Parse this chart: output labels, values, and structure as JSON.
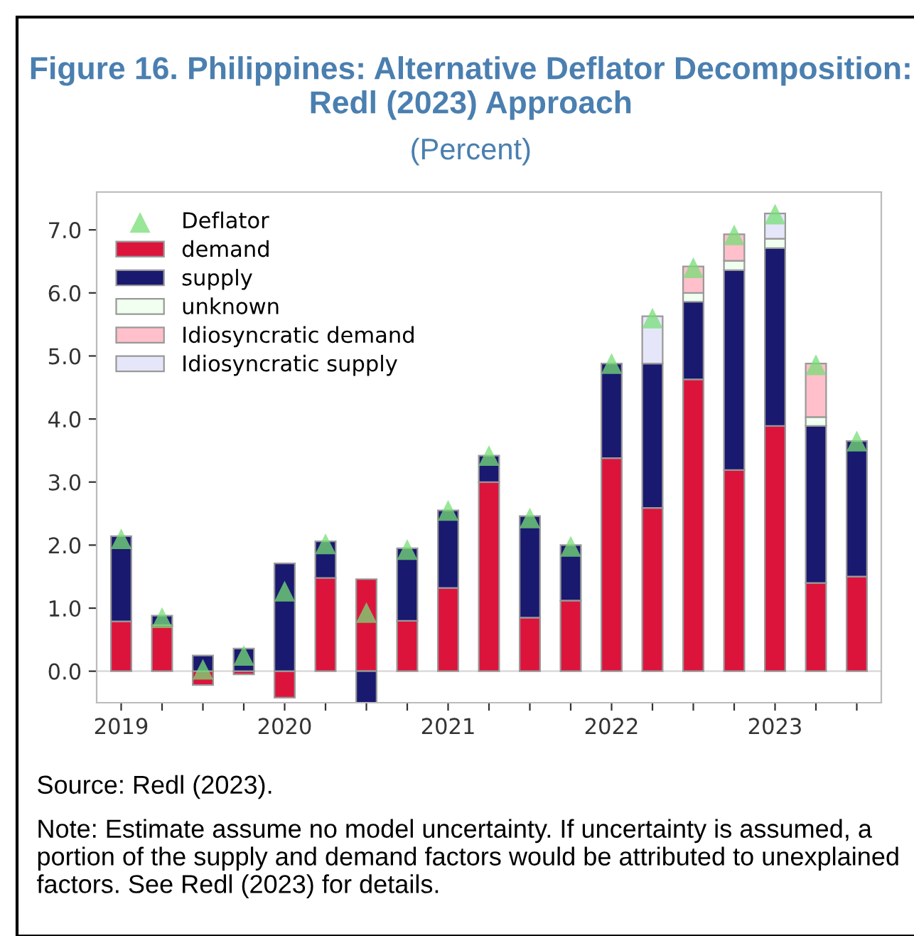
{
  "chart_data": {
    "type": "bar",
    "stacked": true,
    "title": "Figure 16. Philippines: Alternative Deflator Decomposition: Redl (2023) Approach",
    "subtitle": "(Percent)",
    "categories": [
      "2019",
      null,
      null,
      null,
      "2020",
      null,
      null,
      null,
      "2021",
      null,
      null,
      null,
      "2022",
      null,
      null,
      null,
      "2023",
      null,
      null
    ],
    "series": [
      {
        "name": "demand",
        "color": "#dc143c",
        "values": [
          0.79,
          0.73,
          -0.22,
          -0.05,
          -0.42,
          1.48,
          1.46,
          0.8,
          1.32,
          3.0,
          0.85,
          1.12,
          3.38,
          2.59,
          4.63,
          3.19,
          3.89,
          1.4,
          1.5
        ]
      },
      {
        "name": "supply",
        "color": "#191970",
        "values": [
          1.35,
          0.15,
          0.25,
          0.36,
          1.71,
          0.58,
          -0.5,
          1.15,
          1.23,
          0.42,
          1.61,
          0.88,
          1.5,
          2.29,
          1.23,
          3.17,
          2.82,
          2.49,
          2.15
        ]
      },
      {
        "name": "unknown",
        "color": "#f0fff0",
        "values": [
          null,
          null,
          null,
          null,
          null,
          null,
          null,
          null,
          null,
          null,
          null,
          null,
          null,
          null,
          0.14,
          0.15,
          0.15,
          0.14,
          null
        ]
      },
      {
        "name": "Idiosyncratic demand",
        "color": "#ffc0cb",
        "values": [
          null,
          null,
          null,
          null,
          null,
          null,
          null,
          null,
          null,
          null,
          null,
          null,
          null,
          null,
          0.42,
          0.42,
          null,
          0.85,
          null
        ]
      },
      {
        "name": "Idiosyncratic supply",
        "color": "#e6e6fa",
        "values": [
          null,
          null,
          null,
          null,
          null,
          null,
          null,
          null,
          null,
          null,
          null,
          null,
          null,
          0.75,
          null,
          null,
          0.4,
          null,
          null
        ]
      },
      {
        "name": "Deflator",
        "type": "scatter",
        "marker": "triangle",
        "color": "#77dd77",
        "values": [
          2.1,
          0.85,
          0.03,
          0.25,
          1.27,
          2.02,
          0.93,
          1.93,
          2.55,
          3.42,
          2.43,
          1.98,
          4.88,
          5.6,
          6.4,
          6.92,
          7.25,
          4.86,
          3.65
        ]
      }
    ],
    "ylim": [
      -0.5,
      7.6
    ],
    "yticks": [
      {
        "value": 0,
        "label": "0.0"
      },
      {
        "value": 1,
        "label": "1.0"
      },
      {
        "value": 2,
        "label": "2.0"
      },
      {
        "value": 3,
        "label": "3.0"
      },
      {
        "value": 4,
        "label": "4.0"
      },
      {
        "value": 5,
        "label": "5.0"
      },
      {
        "value": 6,
        "label": "6.0"
      },
      {
        "value": 7,
        "label": "7.0"
      }
    ],
    "ref_lines": [
      {
        "axis": "y",
        "value": 0,
        "color": "#dddddd"
      }
    ],
    "grid": false,
    "legend": "top left",
    "annotations": [
      "Source: Redl (2023).",
      "Note: Estimate assume no model uncertainty. If uncertainty is assumed, a portion of the supply and demand factors would be attributed to unexplained factors. See Redl (2023) for details."
    ]
  }
}
